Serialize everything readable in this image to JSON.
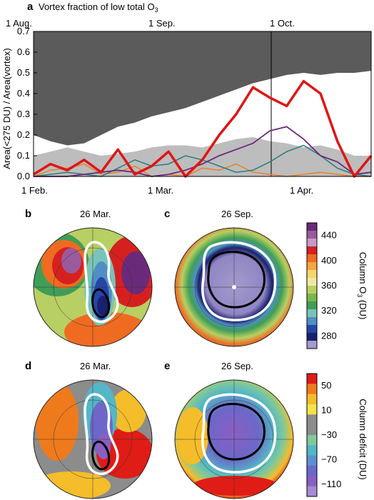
{
  "panel_a": {
    "letter": "a",
    "title_prefix": "Vortex fraction of low total O",
    "title_sub": "3",
    "ylabel": "Area(<275 DU) / Area(vortex)",
    "top_axis_labels": [
      "1 Aug.",
      "1 Sep.",
      "1 Oct."
    ],
    "bottom_axis_labels": [
      "1 Feb.",
      "1 Mar.",
      "1 Apr."
    ],
    "colors": {
      "dark_fill": "#5b5b5b",
      "light_fill": "#bdbdbd",
      "red": "#e01515",
      "purple": "#6a2a7a",
      "teal": "#2a7d7d",
      "orange": "#e8812a"
    }
  },
  "chart_data": {
    "type": "area",
    "ylim": [
      0,
      0.7
    ],
    "yticks": [
      "0.0",
      "0.1",
      "0.2",
      "0.3",
      "0.4",
      "0.5",
      "0.6",
      "0.7"
    ],
    "x_days": [
      0,
      7,
      14,
      21,
      28,
      35,
      42,
      49,
      56,
      63,
      70,
      77,
      84,
      91,
      98,
      105,
      112,
      119,
      126,
      133,
      140
    ],
    "series": [
      {
        "name": "",
        "role": "dark_area_lower_edge",
        "values": [
          0.2,
          0.17,
          0.15,
          0.16,
          0.2,
          0.24,
          0.26,
          0.29,
          0.31,
          0.33,
          0.36,
          0.39,
          0.42,
          0.45,
          0.47,
          0.49,
          0.5,
          0.49,
          0.5,
          0.5,
          0.51
        ]
      },
      {
        "name": "",
        "role": "light_area_top",
        "values": [
          0.1,
          0.12,
          0.14,
          0.12,
          0.1,
          0.11,
          0.12,
          0.14,
          0.15,
          0.15,
          0.14,
          0.16,
          0.18,
          0.19,
          0.17,
          0.16,
          0.14,
          0.15,
          0.13,
          0.1,
          0.1
        ]
      },
      {
        "name": "",
        "role": "red_line",
        "values": [
          0.01,
          0.06,
          0.03,
          0.08,
          0.02,
          0.13,
          0.01,
          0.05,
          0.12,
          0.0,
          0.08,
          0.2,
          0.3,
          0.43,
          0.38,
          0.34,
          0.46,
          0.4,
          0.17,
          0.0,
          0.1
        ]
      },
      {
        "name": "",
        "role": "purple_line",
        "values": [
          0.0,
          0.0,
          0.0,
          0.01,
          0.02,
          0.03,
          0.02,
          0.0,
          0.01,
          0.03,
          0.06,
          0.1,
          0.13,
          0.16,
          0.22,
          0.24,
          0.18,
          0.1,
          0.07,
          0.01,
          0.02
        ]
      },
      {
        "name": "",
        "role": "teal_line",
        "values": [
          0.0,
          0.01,
          0.02,
          0.01,
          0.0,
          0.04,
          0.08,
          0.05,
          0.06,
          0.1,
          0.08,
          0.05,
          0.02,
          0.03,
          0.07,
          0.12,
          0.15,
          0.1,
          0.04,
          0.01,
          0.0
        ]
      },
      {
        "name": "",
        "role": "orange_line",
        "values": [
          0.0,
          0.03,
          0.04,
          0.06,
          0.01,
          0.02,
          0.05,
          0.0,
          0.01,
          0.0,
          0.04,
          0.03,
          0.06,
          0.02,
          0.01,
          0.0,
          0.01,
          0.02,
          0.01,
          0.0,
          0.0
        ]
      }
    ]
  },
  "map_panels": [
    {
      "letter": "b",
      "date": "26 Mar."
    },
    {
      "letter": "c",
      "date": "26 Sep."
    },
    {
      "letter": "d",
      "date": "26 Mar."
    },
    {
      "letter": "e",
      "date": "26 Sep."
    }
  ],
  "colorbar_top": {
    "label_prefix": "Column O",
    "label_sub": "3",
    "label_suffix": " (DU)",
    "ticks": [
      "440",
      "400",
      "360",
      "320",
      "280"
    ],
    "colors": [
      "#6a2a7a",
      "#9c5a9c",
      "#c89ac8",
      "#d62020",
      "#ef6b22",
      "#f4a640",
      "#f7d56e",
      "#f1e8a0",
      "#b8cf63",
      "#79b84c",
      "#3f9e56",
      "#79c4b8",
      "#4f8fc4",
      "#2546a8",
      "#1a1f6e",
      "#a49acb"
    ]
  },
  "colorbar_bottom": {
    "label": "Column deficit (DU)",
    "ticks": [
      "50",
      "10",
      "−30",
      "−70",
      "−110"
    ],
    "colors": [
      "#e01c16",
      "#ef7a1c",
      "#f5bd2a",
      "#f2e34a",
      "#8c8c8c",
      "#8c8c8c",
      "#7fc99a",
      "#54b6c6",
      "#5e8fd0",
      "#6c67c9",
      "#8b5fc2",
      "#a58ad4"
    ]
  }
}
